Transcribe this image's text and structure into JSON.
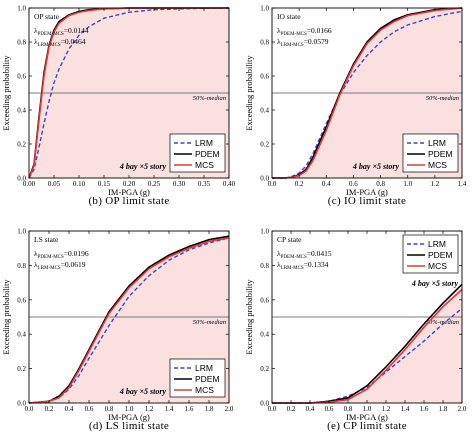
{
  "chart_data": [
    {
      "type": "line",
      "panel_label": "OP state",
      "caption": "(b)  OP  limit state",
      "xlabel": "IM-PGA (g)",
      "ylabel": "Exceeding probability",
      "xlim": [
        0.0,
        0.4
      ],
      "ylim": [
        0.0,
        1.0
      ],
      "xticks": [
        "0.00",
        "0.05",
        "0.10",
        "0.15",
        "0.20",
        "0.25",
        "0.30",
        "0.35",
        "0.40"
      ],
      "yticks": [
        "0.0",
        "0.2",
        "0.4",
        "0.6",
        "0.8",
        "1.0"
      ],
      "lambda_lines": [
        {
          "symbol": "λ",
          "sub": "PDEM-MCS",
          "value": "=0.0144"
        },
        {
          "symbol": "λ",
          "sub": "LRM-MCS",
          "value": "=0.0464"
        }
      ],
      "median_label": "50%-median",
      "median_value": 0.5,
      "story_label": "4 bay ×5 story",
      "legend": [
        "LRM",
        "PDEM",
        "MCS"
      ],
      "legend_position": "bottom-right",
      "series": [
        {
          "name": "LRM",
          "x": [
            0.0,
            0.01,
            0.02,
            0.03,
            0.04,
            0.05,
            0.06,
            0.08,
            0.1,
            0.12,
            0.15,
            0.2,
            0.25,
            0.3,
            0.35,
            0.4
          ],
          "values": [
            0.0,
            0.05,
            0.18,
            0.32,
            0.45,
            0.56,
            0.64,
            0.76,
            0.84,
            0.89,
            0.94,
            0.975,
            0.99,
            0.995,
            0.998,
            1.0
          ]
        },
        {
          "name": "PDEM",
          "x": [
            0.0,
            0.01,
            0.02,
            0.03,
            0.04,
            0.05,
            0.06,
            0.08,
            0.1,
            0.12,
            0.15,
            0.2,
            0.25,
            0.3,
            0.35,
            0.4
          ],
          "values": [
            0.0,
            0.08,
            0.36,
            0.62,
            0.78,
            0.87,
            0.92,
            0.96,
            0.98,
            0.99,
            0.995,
            1.0,
            1.0,
            1.0,
            1.0,
            1.0
          ]
        },
        {
          "name": "MCS",
          "x": [
            0.0,
            0.01,
            0.02,
            0.03,
            0.04,
            0.05,
            0.06,
            0.08,
            0.1,
            0.12,
            0.15,
            0.2,
            0.25,
            0.3,
            0.35,
            0.4
          ],
          "values": [
            0.0,
            0.07,
            0.34,
            0.6,
            0.77,
            0.86,
            0.91,
            0.955,
            0.975,
            0.985,
            0.995,
            1.0,
            1.0,
            1.0,
            1.0,
            1.0
          ]
        }
      ],
      "colors": {
        "LRM": "#3b44c8",
        "PDEM": "#000000",
        "MCS": "#e0383c",
        "fill": "#fbe0e0"
      }
    },
    {
      "type": "line",
      "panel_label": "IO state",
      "caption": "(c)  IO  limit state",
      "xlabel": "IM-PGA (g)",
      "ylabel": "Exceeding probability",
      "xlim": [
        0.0,
        1.4
      ],
      "ylim": [
        0.0,
        1.0
      ],
      "xticks": [
        "0.0",
        "0.2",
        "0.4",
        "0.6",
        "0.8",
        "1.0",
        "1.2",
        "1.4"
      ],
      "yticks": [
        "0.0",
        "0.2",
        "0.4",
        "0.6",
        "0.8",
        "1.0"
      ],
      "lambda_lines": [
        {
          "symbol": "λ",
          "sub": "PDEM-MCS",
          "value": "=0.0166"
        },
        {
          "symbol": "λ",
          "sub": "LRM-MCS",
          "value": "=0.0579"
        }
      ],
      "median_label": "50%-median",
      "median_value": 0.5,
      "story_label": "4 bay ×5 story",
      "legend": [
        "LRM",
        "PDEM",
        "MCS"
      ],
      "legend_position": "bottom-right",
      "series": [
        {
          "name": "LRM",
          "x": [
            0.0,
            0.1,
            0.15,
            0.2,
            0.25,
            0.3,
            0.4,
            0.5,
            0.6,
            0.7,
            0.8,
            0.9,
            1.0,
            1.2,
            1.4
          ],
          "values": [
            0.0,
            0.0,
            0.01,
            0.03,
            0.07,
            0.14,
            0.32,
            0.49,
            0.62,
            0.72,
            0.8,
            0.86,
            0.9,
            0.95,
            0.98
          ]
        },
        {
          "name": "PDEM",
          "x": [
            0.0,
            0.1,
            0.15,
            0.2,
            0.25,
            0.3,
            0.4,
            0.5,
            0.6,
            0.7,
            0.8,
            0.9,
            1.0,
            1.2,
            1.4
          ],
          "values": [
            0.0,
            0.0,
            0.005,
            0.02,
            0.05,
            0.12,
            0.3,
            0.5,
            0.67,
            0.8,
            0.88,
            0.93,
            0.96,
            0.99,
            1.0
          ]
        },
        {
          "name": "MCS",
          "x": [
            0.0,
            0.1,
            0.15,
            0.2,
            0.25,
            0.3,
            0.4,
            0.5,
            0.6,
            0.7,
            0.8,
            0.9,
            1.0,
            1.2,
            1.4
          ],
          "values": [
            0.0,
            0.0,
            0.004,
            0.015,
            0.04,
            0.1,
            0.28,
            0.49,
            0.66,
            0.79,
            0.87,
            0.92,
            0.955,
            0.985,
            1.0
          ]
        }
      ],
      "colors": {
        "LRM": "#3b44c8",
        "PDEM": "#000000",
        "MCS": "#e0383c",
        "fill": "#fbe0e0"
      }
    },
    {
      "type": "line",
      "panel_label": "LS state",
      "caption": "(d)  LS  limit state",
      "xlabel": "IM-PGA (g)",
      "ylabel": "Exceeding probability",
      "xlim": [
        0.0,
        2.0
      ],
      "ylim": [
        0.0,
        1.0
      ],
      "xticks": [
        "0.0",
        "0.2",
        "0.4",
        "0.6",
        "0.8",
        "1.0",
        "1.2",
        "1.4",
        "1.6",
        "1.8",
        "2.0"
      ],
      "yticks": [
        "0.0",
        "0.2",
        "0.4",
        "0.6",
        "0.8",
        "1.0"
      ],
      "lambda_lines": [
        {
          "symbol": "λ",
          "sub": "PDEM-MCS",
          "value": "=0.0196"
        },
        {
          "symbol": "λ",
          "sub": "LRM-MCS",
          "value": "=0.0619"
        }
      ],
      "median_label": "50%-median",
      "median_value": 0.5,
      "story_label": "4 bay ×5 story",
      "legend": [
        "LRM",
        "PDEM",
        "MCS"
      ],
      "legend_position": "bottom-right",
      "series": [
        {
          "name": "LRM",
          "x": [
            0.0,
            0.2,
            0.3,
            0.4,
            0.5,
            0.6,
            0.8,
            1.0,
            1.2,
            1.4,
            1.6,
            1.8,
            2.0
          ],
          "values": [
            0.0,
            0.01,
            0.03,
            0.08,
            0.16,
            0.26,
            0.45,
            0.62,
            0.74,
            0.83,
            0.89,
            0.93,
            0.96
          ]
        },
        {
          "name": "PDEM",
          "x": [
            0.0,
            0.2,
            0.3,
            0.4,
            0.5,
            0.6,
            0.8,
            1.0,
            1.2,
            1.4,
            1.6,
            1.8,
            2.0
          ],
          "values": [
            0.0,
            0.01,
            0.04,
            0.1,
            0.2,
            0.31,
            0.53,
            0.68,
            0.79,
            0.86,
            0.91,
            0.95,
            0.97
          ]
        },
        {
          "name": "MCS",
          "x": [
            0.0,
            0.2,
            0.3,
            0.4,
            0.5,
            0.6,
            0.8,
            1.0,
            1.2,
            1.4,
            1.6,
            1.8,
            2.0
          ],
          "values": [
            0.0,
            0.01,
            0.03,
            0.09,
            0.19,
            0.3,
            0.52,
            0.67,
            0.78,
            0.85,
            0.9,
            0.94,
            0.96
          ]
        }
      ],
      "colors": {
        "LRM": "#3b44c8",
        "PDEM": "#000000",
        "MCS": "#e0383c",
        "fill": "#fbe0e0"
      }
    },
    {
      "type": "line",
      "panel_label": "CP state",
      "caption": "(e)  CP  limit state",
      "xlabel": "IM-PGA (g)",
      "ylabel": "Exceeding probability",
      "xlim": [
        0.0,
        2.0
      ],
      "ylim": [
        0.0,
        1.0
      ],
      "xticks": [
        "0.0",
        "0.2",
        "0.4",
        "0.6",
        "0.8",
        "1.0",
        "1.2",
        "1.4",
        "1.6",
        "1.8",
        "2.0"
      ],
      "yticks": [
        "0.0",
        "0.2",
        "0.4",
        "0.6",
        "0.8",
        "1.0"
      ],
      "lambda_lines": [
        {
          "symbol": "λ",
          "sub": "PDEM-MCS",
          "value": "=0.0415"
        },
        {
          "symbol": "λ",
          "sub": "LRM-MCS",
          "value": "=0.1334"
        }
      ],
      "median_label": "50%-median",
      "median_value": 0.5,
      "story_label": "4 bay ×5 story",
      "legend": [
        "LRM",
        "PDEM",
        "MCS"
      ],
      "legend_position": "top-right",
      "series": [
        {
          "name": "LRM",
          "x": [
            0.0,
            0.4,
            0.6,
            0.8,
            1.0,
            1.2,
            1.4,
            1.6,
            1.8,
            2.0
          ],
          "values": [
            0.0,
            0.0,
            0.01,
            0.04,
            0.09,
            0.18,
            0.27,
            0.36,
            0.46,
            0.55
          ]
        },
        {
          "name": "PDEM",
          "x": [
            0.0,
            0.4,
            0.6,
            0.8,
            1.0,
            1.2,
            1.4,
            1.6,
            1.8,
            2.0
          ],
          "values": [
            0.0,
            0.0,
            0.01,
            0.03,
            0.1,
            0.21,
            0.33,
            0.46,
            0.58,
            0.69
          ]
        },
        {
          "name": "MCS",
          "x": [
            0.0,
            0.4,
            0.6,
            0.8,
            1.0,
            1.2,
            1.4,
            1.6,
            1.8,
            2.0
          ],
          "values": [
            0.0,
            0.0,
            0.005,
            0.02,
            0.08,
            0.19,
            0.31,
            0.44,
            0.56,
            0.66
          ]
        }
      ],
      "colors": {
        "LRM": "#3b44c8",
        "PDEM": "#000000",
        "MCS": "#e0383c",
        "fill": "#fbe0e0"
      }
    }
  ]
}
